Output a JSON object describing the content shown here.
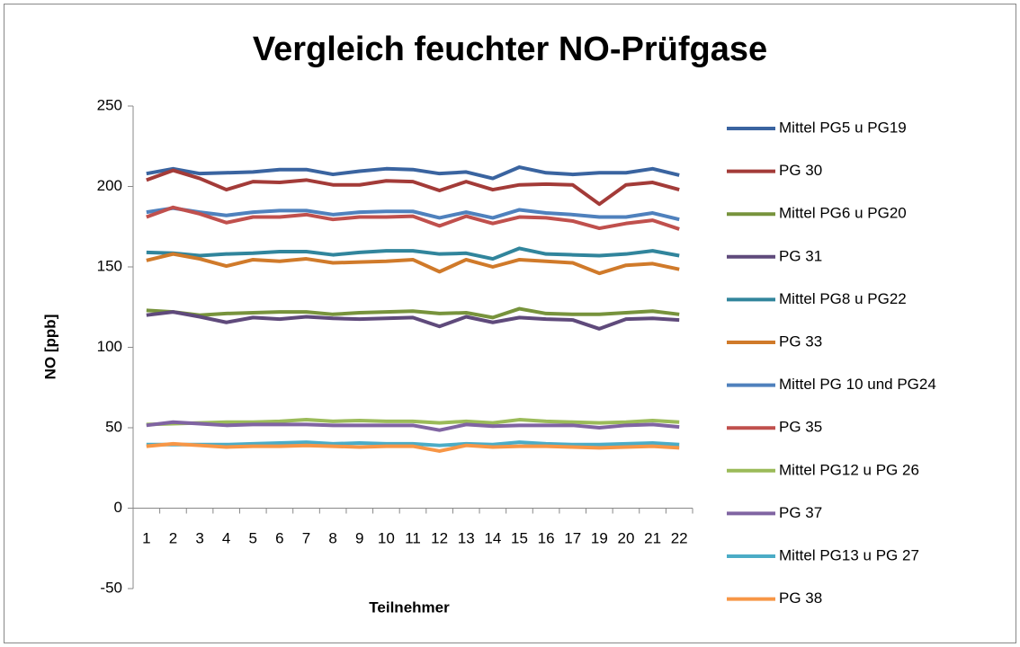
{
  "chart_data": {
    "type": "line",
    "title": "Vergleich feuchter NO-Prüfgase",
    "x_label": "Teilnehmer",
    "y_label": "NO [ppb]",
    "categories": [
      "1",
      "2",
      "3",
      "4",
      "5",
      "6",
      "7",
      "8",
      "9",
      "10",
      "11",
      "12",
      "13",
      "14",
      "15",
      "16",
      "17",
      "19",
      "20",
      "21",
      "22"
    ],
    "ylim": [
      -50,
      250
    ],
    "yticks": [
      -50,
      0,
      50,
      100,
      150,
      200,
      250
    ],
    "legend": "right",
    "series": [
      {
        "name": "Mittel PG5 u PG19",
        "color": "#3a64a0",
        "values": [
          208,
          211,
          208,
          208.5,
          209,
          210.5,
          210.5,
          207.5,
          209.5,
          211,
          210.5,
          208,
          209,
          205,
          212,
          208.5,
          207.5,
          208.5,
          208.5,
          211,
          207
        ]
      },
      {
        "name": "PG 30",
        "color": "#a33b38",
        "values": [
          204,
          210,
          205,
          198,
          203,
          202.5,
          204,
          201,
          201,
          203.5,
          203,
          197.5,
          203,
          198,
          201,
          201.5,
          201,
          189,
          201,
          202.5,
          198
        ]
      },
      {
        "name": "Mittel PG6 u PG20",
        "color": "#77933c",
        "values": [
          123,
          122,
          120,
          121,
          121.5,
          122,
          122,
          120.5,
          121.5,
          122,
          122.5,
          121,
          121.5,
          118.5,
          124,
          121,
          120.5,
          120.5,
          121.5,
          122.5,
          120.5
        ]
      },
      {
        "name": "PG 31",
        "color": "#5f4a7b",
        "values": [
          120,
          122,
          119,
          115.5,
          118.5,
          117.5,
          119,
          118,
          117.5,
          118,
          118.5,
          113,
          119,
          115.5,
          118.5,
          117.5,
          117,
          111.5,
          117.5,
          118,
          117
        ]
      },
      {
        "name": "Mittel PG8 u PG22",
        "color": "#31859c",
        "values": [
          159,
          158.5,
          157,
          158,
          158.5,
          159.5,
          159.5,
          157.5,
          159,
          160,
          160,
          158,
          158.5,
          155,
          161.5,
          158,
          157.5,
          157,
          158,
          160,
          157
        ]
      },
      {
        "name": "PG 33",
        "color": "#d07a2a",
        "values": [
          154,
          158,
          155,
          150.5,
          154.5,
          153.5,
          155,
          152.5,
          153,
          153.5,
          154.5,
          147,
          154.5,
          150,
          154.5,
          153.5,
          152.5,
          146,
          151,
          152,
          148.5
        ]
      },
      {
        "name": "Mittel PG 10 und PG24",
        "color": "#4f81bd",
        "values": [
          184,
          186.5,
          184,
          182,
          184,
          185,
          185,
          182.5,
          184,
          184.5,
          184.5,
          180.5,
          184,
          180.5,
          185.5,
          183.5,
          182.5,
          181,
          181,
          183.5,
          179.5
        ]
      },
      {
        "name": "PG 35",
        "color": "#c0504d",
        "values": [
          181,
          187,
          183,
          177.5,
          181,
          181,
          182.5,
          179.5,
          181,
          181,
          181.5,
          175.5,
          181.5,
          177,
          181,
          180.5,
          178.5,
          174,
          177,
          179,
          173.5
        ]
      },
      {
        "name": "Mittel PG12 u PG 26",
        "color": "#9bbb59",
        "values": [
          52,
          52.5,
          53,
          53.5,
          53.5,
          54,
          55,
          54,
          54.5,
          54,
          54,
          53,
          54,
          53,
          55,
          54,
          53.5,
          53,
          53.5,
          54.5,
          53.5
        ]
      },
      {
        "name": "PG 37",
        "color": "#8064a2",
        "values": [
          51.5,
          53.5,
          52.5,
          51.5,
          52,
          52,
          52,
          51.5,
          51.5,
          51.5,
          51.5,
          48.5,
          52,
          51,
          51.5,
          51.5,
          51.5,
          50,
          51.5,
          52,
          50.5
        ]
      },
      {
        "name": "Mittel PG13 u PG 27",
        "color": "#4bacc6",
        "values": [
          39.5,
          39.5,
          39.5,
          39.5,
          40,
          40.5,
          41,
          40,
          40.5,
          40,
          40,
          39,
          40,
          39.5,
          41,
          40,
          39.5,
          39.5,
          40,
          40.5,
          39.5
        ]
      },
      {
        "name": "PG 38",
        "color": "#f79646",
        "values": [
          38.5,
          40,
          39,
          38,
          38.5,
          38.5,
          39,
          38.5,
          38,
          38.5,
          38.5,
          35.5,
          39,
          38,
          38.5,
          38.5,
          38,
          37.5,
          38,
          38.5,
          37.5
        ]
      }
    ]
  }
}
